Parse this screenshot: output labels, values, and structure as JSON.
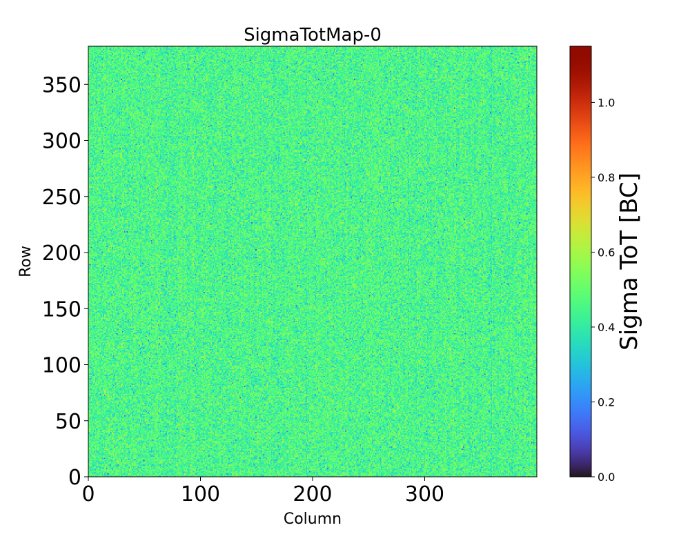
{
  "chart_data": {
    "type": "heatmap",
    "title": "SigmaTotMap-0",
    "xlabel": "Column",
    "ylabel": "Row",
    "xlim": [
      0,
      400
    ],
    "ylim": [
      0,
      384
    ],
    "x_ticks": [
      0,
      100,
      200,
      300
    ],
    "y_ticks": [
      0,
      50,
      100,
      150,
      200,
      250,
      300,
      350
    ],
    "x_tick_labels": [
      "0",
      "100",
      "200",
      "300"
    ],
    "y_tick_labels": [
      "0",
      "50",
      "100",
      "150",
      "200",
      "250",
      "300",
      "350"
    ],
    "colorbar": {
      "label": "Sigma ToT [BC]",
      "colormap": "turbo",
      "range": [
        0.0,
        1.15
      ],
      "ticks": [
        0.0,
        0.2,
        0.4,
        0.6,
        0.8,
        1.0
      ],
      "tick_labels": [
        "0.0",
        "0.2",
        "0.4",
        "0.6",
        "0.8",
        "1.0"
      ]
    },
    "data_summary": {
      "columns": 400,
      "rows": 384,
      "typical_value": 0.45,
      "typical_spread": 0.07,
      "min_observed": 0.1,
      "max_observed": 0.65
    }
  }
}
